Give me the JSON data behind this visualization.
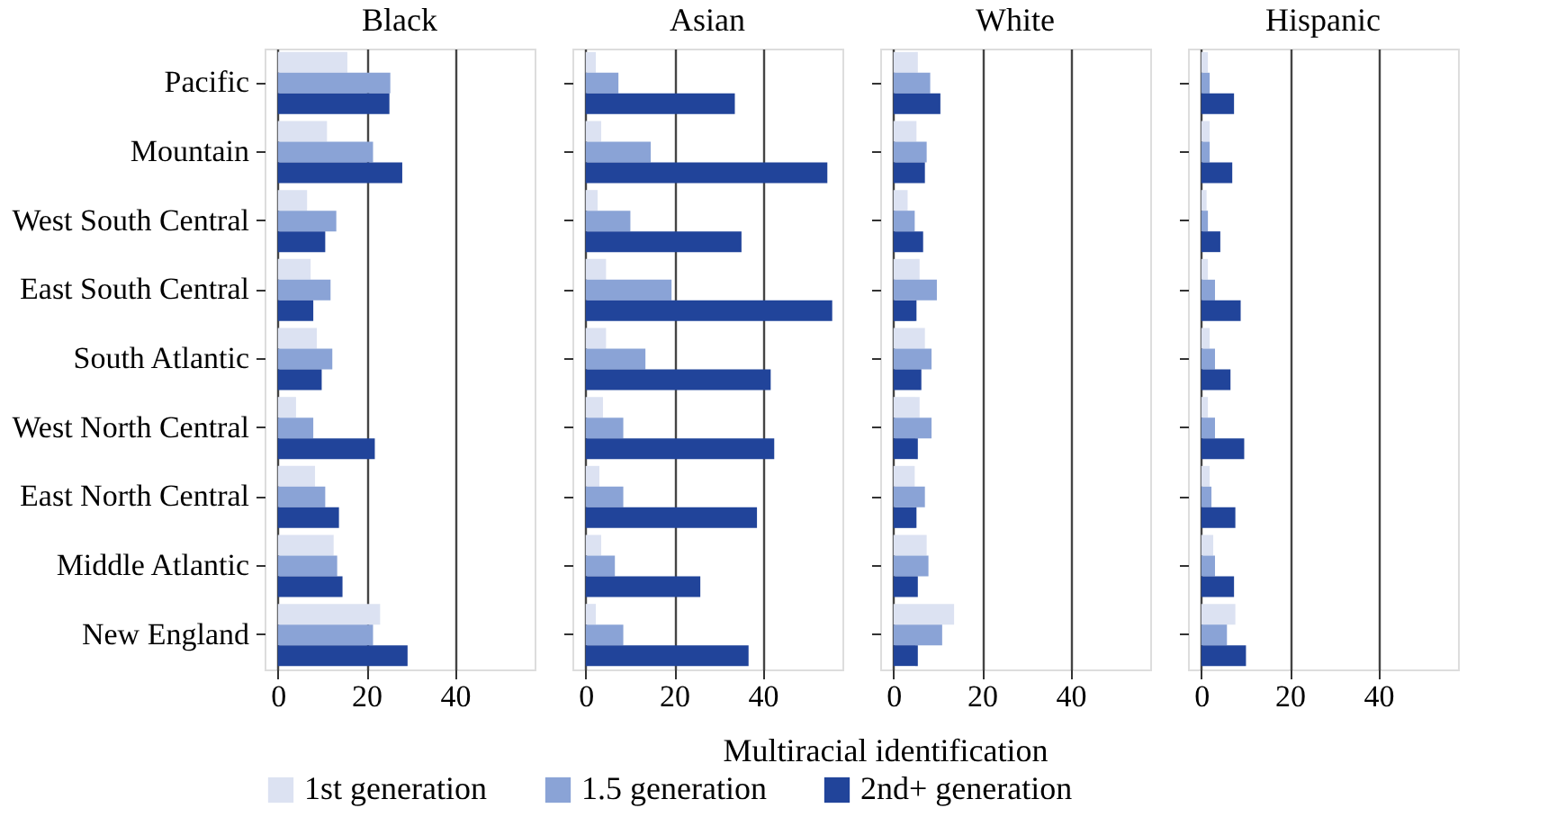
{
  "chart_data": [
    {
      "type": "bar",
      "orientation": "horizontal",
      "title": "Black",
      "xlabel": "Multiracial identification",
      "legend": "bottom",
      "grid": "x",
      "categories": [
        "Pacific",
        "Mountain",
        "West South Central",
        "East South Central",
        "South Atlantic",
        "West North Central",
        "East North Central",
        "Middle Atlantic",
        "New England"
      ],
      "xlim": [
        -3,
        58
      ],
      "xticks": [
        0,
        20,
        40
      ],
      "series": [
        {
          "name": "1st generation",
          "color": "#dce2f2",
          "values": [
            15.7,
            11.1,
            6.6,
            7.4,
            8.8,
            4.1,
            8.4,
            12.6,
            23.1
          ]
        },
        {
          "name": "1.5 generation",
          "color": "#8aa3d6",
          "values": [
            25.4,
            21.5,
            13.2,
            11.9,
            12.3,
            8.0,
            10.7,
            13.4,
            21.5
          ]
        },
        {
          "name": "2nd+ generation",
          "color": "#21449a",
          "values": [
            25.2,
            28.1,
            10.7,
            8.0,
            9.9,
            21.9,
            13.8,
            14.6,
            29.3
          ]
        }
      ]
    },
    {
      "type": "bar",
      "orientation": "horizontal",
      "title": "Asian",
      "grid": "x",
      "tick_labels": "x",
      "categories": [
        "Pacific",
        "Mountain",
        "West South Central",
        "East South Central",
        "South Atlantic",
        "West North Central",
        "East North Central",
        "Middle Atlantic",
        "New England"
      ],
      "xlim": [
        -3,
        58
      ],
      "xticks": [
        0,
        20,
        40
      ],
      "series": [
        {
          "name": "1st generation",
          "color": "#dce2f2",
          "values": [
            2.3,
            3.5,
            2.7,
            4.6,
            4.6,
            3.9,
            3.1,
            3.5,
            2.3
          ]
        },
        {
          "name": "1.5 generation",
          "color": "#8aa3d6",
          "values": [
            7.4,
            14.7,
            10.1,
            19.4,
            13.5,
            8.5,
            8.5,
            6.6,
            8.5
          ]
        },
        {
          "name": "2nd+ generation",
          "color": "#21449a",
          "values": [
            33.7,
            54.6,
            35.2,
            55.7,
            41.8,
            42.6,
            38.7,
            25.9,
            36.8
          ]
        }
      ]
    },
    {
      "type": "bar",
      "orientation": "horizontal",
      "title": "White",
      "grid": "x",
      "tick_labels": "x",
      "categories": [
        "Pacific",
        "Mountain",
        "West South Central",
        "East South Central",
        "South Atlantic",
        "West North Central",
        "East North Central",
        "Middle Atlantic",
        "New England"
      ],
      "xlim": [
        -3,
        58
      ],
      "xticks": [
        0,
        20,
        40
      ],
      "series": [
        {
          "name": "1st generation",
          "color": "#dce2f2",
          "values": [
            5.5,
            5.2,
            3.2,
            5.9,
            7.1,
            5.9,
            4.8,
            7.5,
            13.7
          ]
        },
        {
          "name": "1.5 generation",
          "color": "#8aa3d6",
          "values": [
            8.3,
            7.5,
            4.8,
            9.8,
            8.6,
            8.6,
            7.1,
            7.9,
            11.0
          ]
        },
        {
          "name": "2nd+ generation",
          "color": "#21449a",
          "values": [
            10.6,
            7.1,
            6.7,
            5.2,
            6.3,
            5.5,
            5.2,
            5.5,
            5.5
          ]
        }
      ]
    },
    {
      "type": "bar",
      "orientation": "horizontal",
      "title": "Hispanic",
      "grid": "x",
      "tick_labels": "x",
      "categories": [
        "Pacific",
        "Mountain",
        "West South Central",
        "East South Central",
        "South Atlantic",
        "West North Central",
        "East North Central",
        "Middle Atlantic",
        "New England"
      ],
      "xlim": [
        -3,
        58
      ],
      "xticks": [
        0,
        20,
        40
      ],
      "series": [
        {
          "name": "1st generation",
          "color": "#dce2f2",
          "values": [
            1.5,
            1.9,
            1.2,
            1.5,
            1.9,
            1.5,
            1.9,
            2.7,
            7.7
          ]
        },
        {
          "name": "1.5 generation",
          "color": "#8aa3d6",
          "values": [
            1.9,
            1.9,
            1.5,
            3.1,
            3.1,
            3.1,
            2.3,
            3.1,
            5.8
          ]
        },
        {
          "name": "2nd+ generation",
          "color": "#21449a",
          "values": [
            7.4,
            7.0,
            4.3,
            8.9,
            6.6,
            9.7,
            7.7,
            7.4,
            10.1
          ]
        }
      ]
    }
  ]
}
